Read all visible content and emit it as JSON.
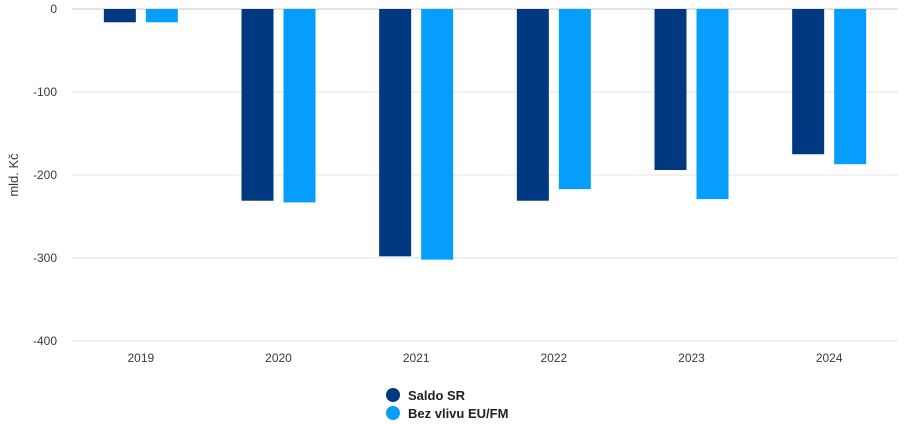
{
  "chart_data": {
    "type": "bar",
    "categories": [
      "2019",
      "2020",
      "2021",
      "2022",
      "2023",
      "2024"
    ],
    "series": [
      {
        "name": "Saldo SR",
        "color": "#003882",
        "values": [
          -16,
          -231,
          -298,
          -231,
          -194,
          -175
        ]
      },
      {
        "name": "Bez vlivu EU/FM",
        "color": "#069efc",
        "values": [
          -16,
          -233,
          -302,
          -217,
          -229,
          -187
        ]
      }
    ],
    "title": "",
    "xlabel": "",
    "ylabel": "mld. Kč",
    "ylim": [
      -400,
      0
    ],
    "yticks": [
      0,
      -100,
      -200,
      -300,
      -400
    ],
    "grid": true,
    "legend_position": "bottom-center"
  }
}
